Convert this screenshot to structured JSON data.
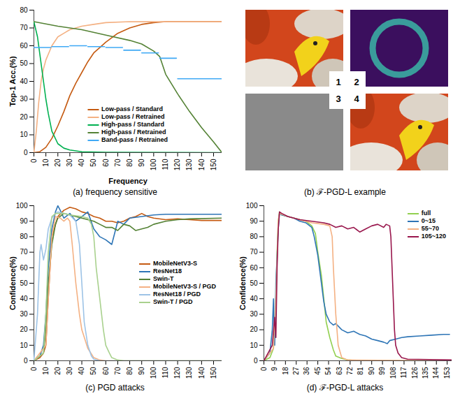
{
  "chart_data": [
    {
      "type": "line",
      "title": "(a) frequency sensitive",
      "xlabel": "Frequency",
      "ylabel": "Top-1 Acc.(%)",
      "xlim": [
        0,
        157
      ],
      "xticks": [
        0,
        10,
        20,
        30,
        40,
        50,
        60,
        70,
        80,
        90,
        100,
        110,
        120,
        130,
        140,
        150
      ],
      "ylim": [
        0,
        80
      ],
      "yticks": [
        0,
        10,
        20,
        30,
        40,
        50,
        60,
        70,
        80
      ],
      "legend": "lower center",
      "series": [
        {
          "name": "Low-pass / Standard",
          "color": "#c55a11",
          "x": [
            0,
            5,
            10,
            15,
            20,
            25,
            30,
            35,
            40,
            45,
            50,
            55,
            60,
            70,
            80,
            90,
            100,
            110,
            120,
            157
          ],
          "values": [
            0,
            0.5,
            3,
            8,
            15,
            23,
            32,
            39,
            45,
            51,
            56,
            59,
            62,
            67,
            70,
            72,
            73,
            73.5,
            73.5,
            73.5
          ]
        },
        {
          "name": "Low-pass / Retrained",
          "color": "#f4b183",
          "x": [
            0,
            2,
            4,
            6,
            8,
            10,
            15,
            20,
            25,
            30,
            40,
            50,
            60,
            80,
            157
          ],
          "values": [
            0,
            12,
            28,
            40,
            47,
            52,
            60,
            65,
            67,
            69,
            71,
            72,
            73,
            73.5,
            73.5
          ]
        },
        {
          "name": "High-pass / Standard",
          "color": "#00b050",
          "x": [
            0,
            3,
            5,
            8,
            10,
            12,
            15,
            20,
            25,
            30,
            40,
            60,
            157
          ],
          "values": [
            73.5,
            65,
            55,
            40,
            30,
            22,
            12,
            5,
            2.5,
            1.5,
            0.5,
            0.2,
            0
          ]
        },
        {
          "name": "High-pass / Retrained",
          "color": "#548235",
          "x": [
            0,
            20,
            40,
            60,
            80,
            90,
            100,
            105,
            110,
            120,
            130,
            140,
            150,
            157
          ],
          "values": [
            73.5,
            71,
            69,
            66,
            63,
            61,
            57,
            54,
            44,
            33,
            23,
            14,
            6,
            0
          ]
        },
        {
          "name": "Band-pass / Retrained",
          "color": "#3fa9f5",
          "x": [
            0,
            14,
            14,
            15,
            29,
            29,
            30,
            44,
            44,
            45,
            59,
            59,
            60,
            74,
            74,
            75,
            89,
            89,
            90,
            104,
            104,
            105,
            119,
            119,
            120,
            157
          ],
          "values": [
            59,
            59,
            null,
            59.5,
            59.5,
            null,
            60,
            60,
            null,
            59.5,
            59.5,
            null,
            59,
            59,
            null,
            57.5,
            57.5,
            null,
            56,
            56,
            null,
            53,
            53,
            null,
            41.5,
            41.5
          ]
        }
      ]
    },
    {
      "type": "image",
      "title": "(b) ℱ-PGD-L example",
      "labels": [
        "1",
        "2",
        "3",
        "4"
      ]
    },
    {
      "type": "line",
      "title": "(c) PGD attacks",
      "ylabel": "Confidence(%)",
      "xlim": [
        0,
        157
      ],
      "xticks": [
        0,
        10,
        20,
        30,
        40,
        50,
        60,
        70,
        80,
        90,
        100,
        110,
        120,
        130,
        140,
        150
      ],
      "ylim": [
        0,
        100
      ],
      "yticks": [
        0,
        10,
        20,
        30,
        40,
        50,
        60,
        70,
        80,
        90,
        100
      ],
      "legend": "center right",
      "series": [
        {
          "name": "MobileNetV3-S",
          "color": "#c55a11",
          "x": [
            0,
            5,
            8,
            10,
            12,
            15,
            20,
            25,
            30,
            35,
            40,
            45,
            50,
            55,
            60,
            65,
            70,
            75,
            80,
            85,
            90,
            95,
            100,
            110,
            120,
            130,
            140,
            157
          ],
          "values": [
            0,
            2,
            5,
            10,
            40,
            80,
            93,
            97,
            99,
            98,
            96,
            95,
            93,
            92,
            90,
            90,
            89,
            90,
            92,
            93,
            95,
            93,
            92,
            91,
            91.5,
            91,
            90.5,
            90.5
          ]
        },
        {
          "name": "ResNet18",
          "color": "#2e75b6",
          "x": [
            0,
            5,
            8,
            10,
            12,
            15,
            18,
            20,
            22,
            25,
            30,
            35,
            40,
            45,
            50,
            55,
            60,
            65,
            70,
            75,
            80,
            90,
            100,
            110,
            120,
            157
          ],
          "values": [
            0,
            3,
            10,
            30,
            60,
            85,
            96,
            100,
            97,
            92,
            95,
            90,
            93,
            96,
            85,
            80,
            78,
            75,
            90,
            88,
            92,
            93,
            94,
            94.5,
            94.5,
            94.5
          ]
        },
        {
          "name": "Swin-T",
          "color": "#548235",
          "x": [
            0,
            8,
            10,
            12,
            15,
            18,
            20,
            25,
            30,
            35,
            40,
            45,
            50,
            55,
            60,
            65,
            70,
            75,
            80,
            85,
            90,
            95,
            100,
            110,
            120,
            130,
            157
          ],
          "values": [
            0,
            5,
            20,
            50,
            75,
            88,
            92,
            95,
            94,
            93,
            92,
            91,
            90,
            88,
            86,
            86,
            84,
            88,
            87,
            84,
            85,
            86,
            88,
            90,
            91,
            91.5,
            92
          ]
        },
        {
          "name": "MobileNetV3-S / PGD",
          "color": "#f4b183",
          "x": [
            0,
            10,
            12,
            15,
            18,
            22,
            25,
            28,
            30,
            32,
            35,
            38,
            40,
            45,
            50,
            55,
            60,
            157
          ],
          "values": [
            0,
            10,
            40,
            80,
            93,
            92,
            90,
            92,
            90,
            75,
            50,
            30,
            20,
            8,
            2,
            0.5,
            0,
            0
          ]
        },
        {
          "name": "ResNet18 / PGD",
          "color": "#9dc3e6",
          "x": [
            0,
            3,
            5,
            6,
            8,
            10,
            12,
            15,
            18,
            20,
            25,
            30,
            35,
            38,
            40,
            42,
            45,
            48,
            50,
            55,
            157
          ],
          "values": [
            0,
            30,
            70,
            75,
            65,
            72,
            85,
            92,
            95,
            96,
            95,
            94,
            90,
            75,
            50,
            25,
            10,
            3,
            1,
            0,
            0
          ]
        },
        {
          "name": "Swin-T / PGD",
          "color": "#a9d18e",
          "x": [
            0,
            8,
            10,
            12,
            15,
            18,
            25,
            30,
            40,
            45,
            48,
            50,
            52,
            55,
            58,
            60,
            63,
            65,
            70,
            75,
            157
          ],
          "values": [
            0,
            5,
            30,
            70,
            93,
            95,
            95,
            94,
            93,
            92,
            88,
            80,
            60,
            40,
            20,
            10,
            5,
            2,
            0.5,
            0,
            0
          ]
        }
      ]
    },
    {
      "type": "line",
      "title": "(d) ℱ-PGD-L attacks",
      "ylabel": "Confidence(%)",
      "xlim": [
        0,
        157
      ],
      "xticks": [
        0,
        9,
        18,
        27,
        36,
        45,
        54,
        63,
        72,
        81,
        90,
        99,
        108,
        117,
        126,
        135,
        144,
        153
      ],
      "ylim": [
        0,
        100
      ],
      "yticks": [
        0,
        10,
        20,
        30,
        40,
        50,
        60,
        70,
        80,
        90,
        100
      ],
      "legend": "upper right",
      "series": [
        {
          "name": "full",
          "color": "#92d050",
          "x": [
            0,
            5,
            8,
            9,
            10,
            11,
            12,
            13,
            15,
            20,
            25,
            30,
            35,
            40,
            43,
            45,
            48,
            50,
            52,
            55,
            58,
            60,
            65,
            70,
            80,
            157
          ],
          "values": [
            0,
            2,
            8,
            20,
            40,
            70,
            90,
            96,
            94,
            93,
            92,
            91,
            90,
            87,
            82,
            70,
            55,
            40,
            25,
            15,
            7,
            3,
            1.5,
            0.5,
            0,
            0
          ]
        },
        {
          "name": "0~15",
          "color": "#2e75b6",
          "x": [
            0,
            5,
            7,
            8,
            9,
            10,
            12,
            13,
            15,
            20,
            25,
            30,
            35,
            40,
            42,
            45,
            48,
            50,
            52,
            55,
            58,
            60,
            65,
            70,
            75,
            80,
            85,
            90,
            95,
            100,
            103,
            105,
            110,
            115,
            120,
            130,
            140,
            150,
            155
          ],
          "values": [
            0,
            5,
            20,
            40,
            10,
            50,
            85,
            95,
            94,
            93,
            92,
            90,
            89,
            86,
            80,
            68,
            50,
            38,
            30,
            25,
            23,
            24,
            20,
            18,
            19,
            17,
            16,
            14,
            13,
            12,
            11,
            13,
            14,
            15,
            15.5,
            16,
            16.5,
            17,
            17
          ]
        },
        {
          "name": "55~70",
          "color": "#f4b183",
          "x": [
            0,
            8,
            10,
            12,
            13,
            20,
            30,
            40,
            50,
            55,
            57,
            58,
            60,
            62,
            65,
            70,
            157
          ],
          "values": [
            0,
            8,
            40,
            90,
            95,
            93,
            91,
            89,
            88,
            87,
            80,
            60,
            30,
            10,
            2,
            0.5,
            0
          ]
        },
        {
          "name": "105~120",
          "color": "#99174d",
          "x": [
            0,
            7,
            9,
            10,
            11,
            12,
            13,
            15,
            20,
            25,
            30,
            40,
            50,
            55,
            60,
            65,
            70,
            75,
            80,
            85,
            90,
            95,
            100,
            102,
            105,
            106,
            107,
            108,
            109,
            110,
            112,
            115,
            120,
            157
          ],
          "values": [
            0,
            10,
            28,
            15,
            60,
            85,
            96,
            95,
            93,
            92,
            91,
            90,
            89,
            88,
            86,
            87,
            85,
            86,
            83,
            85,
            87,
            88,
            86,
            88,
            87,
            80,
            60,
            40,
            20,
            10,
            5,
            2,
            1,
            0.5
          ]
        }
      ]
    }
  ]
}
